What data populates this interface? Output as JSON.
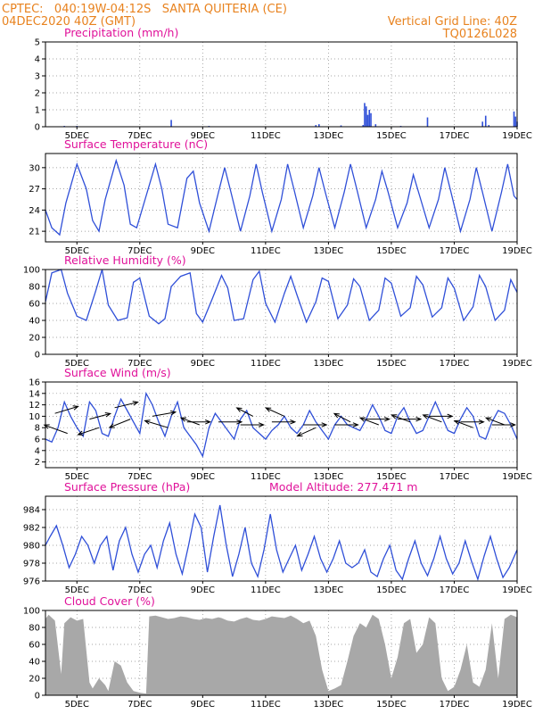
{
  "header": {
    "left_line1": "CPTEC:   040:19W-04:12S   SANTA QUITERIA (CE)",
    "left_line2": "04DEC2020 40Z (GMT)",
    "right_line1": "Vertical Grid Line: 40Z",
    "right_line2": "TQ0126L028"
  },
  "colors": {
    "series": "#2f4fd8",
    "cloud": "#a8a8a8",
    "header": "#e8821e",
    "title": "#e0129a",
    "arrow": "#000000"
  },
  "x_axis": {
    "ticks": [
      "5DEC",
      "7DEC",
      "9DEC",
      "11DEC",
      "13DEC",
      "15DEC",
      "17DEC",
      "19DEC"
    ],
    "range_days": [
      4.0,
      19.0
    ]
  },
  "chart_data": [
    {
      "id": "precip",
      "type": "bar",
      "title": "Precipitation (mm/h)",
      "ylim": [
        0,
        5
      ],
      "yticks": [
        0,
        1,
        2,
        3,
        4,
        5
      ],
      "x": [
        4.6,
        5.0,
        8.0,
        9.2,
        12.6,
        12.7,
        13.4,
        14.1,
        14.15,
        14.2,
        14.25,
        14.3,
        14.35,
        14.5,
        15.3,
        16.15,
        17.9,
        18.0,
        18.1,
        18.9,
        18.95,
        19.0
      ],
      "values": [
        0.05,
        0.05,
        0.4,
        0.05,
        0.1,
        0.15,
        0.08,
        0.1,
        1.4,
        1.2,
        0.7,
        1.0,
        0.8,
        0.15,
        0.05,
        0.55,
        0.3,
        0.65,
        0.1,
        0.9,
        0.6,
        0.3
      ]
    },
    {
      "id": "temp",
      "type": "line",
      "title": "Surface Temperature (nC)",
      "ylim": [
        19.5,
        32
      ],
      "yticks": [
        21,
        24,
        27,
        30
      ],
      "x": [
        4.0,
        4.2,
        4.45,
        4.65,
        5.0,
        5.3,
        5.5,
        5.7,
        5.9,
        6.25,
        6.5,
        6.7,
        6.9,
        7.2,
        7.5,
        7.7,
        7.9,
        8.2,
        8.5,
        8.7,
        8.9,
        9.2,
        9.5,
        9.7,
        9.9,
        10.2,
        10.5,
        10.7,
        10.9,
        11.2,
        11.5,
        11.7,
        11.9,
        12.2,
        12.5,
        12.7,
        12.9,
        13.2,
        13.5,
        13.7,
        13.9,
        14.2,
        14.5,
        14.7,
        14.9,
        15.2,
        15.5,
        15.7,
        15.9,
        16.2,
        16.5,
        16.7,
        16.9,
        17.2,
        17.5,
        17.7,
        17.9,
        18.2,
        18.5,
        18.7,
        18.9,
        19.0
      ],
      "values": [
        24.0,
        21.5,
        20.5,
        25.0,
        30.5,
        27.0,
        22.5,
        21.0,
        25.5,
        31.0,
        27.5,
        22.0,
        21.5,
        26.0,
        30.5,
        27.0,
        22.0,
        21.5,
        28.5,
        29.5,
        25.0,
        21.0,
        26.5,
        30.0,
        26.5,
        21.0,
        26.0,
        30.5,
        26.5,
        21.0,
        25.5,
        30.5,
        27.0,
        21.5,
        26.0,
        30.0,
        26.5,
        21.5,
        26.5,
        30.5,
        27.0,
        21.5,
        25.5,
        29.5,
        26.5,
        21.5,
        25.0,
        29.0,
        26.0,
        21.5,
        25.5,
        30.0,
        26.5,
        21.0,
        25.5,
        30.0,
        26.5,
        21.0,
        26.5,
        30.5,
        26.0,
        25.5
      ]
    },
    {
      "id": "rh",
      "type": "line",
      "title": "Relative Humidity (%)",
      "ylim": [
        0,
        100
      ],
      "yticks": [
        0,
        20,
        40,
        60,
        80,
        100
      ],
      "x": [
        4.0,
        4.2,
        4.5,
        4.7,
        5.0,
        5.3,
        5.6,
        5.8,
        6.0,
        6.3,
        6.6,
        6.8,
        7.0,
        7.3,
        7.6,
        7.8,
        8.0,
        8.3,
        8.6,
        8.8,
        9.0,
        9.3,
        9.6,
        9.8,
        10.0,
        10.3,
        10.6,
        10.8,
        11.0,
        11.3,
        11.6,
        11.8,
        12.0,
        12.3,
        12.6,
        12.8,
        13.0,
        13.3,
        13.6,
        13.8,
        14.0,
        14.3,
        14.6,
        14.8,
        15.0,
        15.3,
        15.6,
        15.8,
        16.0,
        16.3,
        16.6,
        16.8,
        17.0,
        17.3,
        17.6,
        17.8,
        18.0,
        18.3,
        18.6,
        18.8,
        19.0
      ],
      "values": [
        62,
        96,
        100,
        72,
        45,
        40,
        75,
        100,
        58,
        40,
        43,
        85,
        90,
        45,
        36,
        42,
        80,
        92,
        96,
        48,
        38,
        65,
        93,
        78,
        40,
        42,
        88,
        98,
        60,
        38,
        72,
        92,
        70,
        38,
        62,
        90,
        86,
        42,
        58,
        89,
        80,
        40,
        52,
        90,
        84,
        45,
        55,
        92,
        82,
        44,
        55,
        90,
        78,
        40,
        56,
        93,
        80,
        40,
        52,
        88,
        73
      ]
    },
    {
      "id": "wind",
      "type": "line",
      "title": "Surface Wind (m/s)",
      "ylim": [
        1,
        16
      ],
      "yticks": [
        2,
        4,
        6,
        8,
        10,
        12,
        14,
        16
      ],
      "x": [
        4.0,
        4.2,
        4.4,
        4.6,
        4.8,
        5.0,
        5.2,
        5.4,
        5.6,
        5.8,
        6.0,
        6.2,
        6.4,
        6.6,
        6.8,
        7.0,
        7.2,
        7.4,
        7.6,
        7.8,
        8.0,
        8.2,
        8.4,
        8.6,
        8.8,
        9.0,
        9.2,
        9.4,
        9.6,
        9.8,
        10.0,
        10.2,
        10.4,
        10.6,
        10.8,
        11.0,
        11.2,
        11.4,
        11.6,
        11.8,
        12.0,
        12.2,
        12.4,
        12.6,
        12.8,
        13.0,
        13.2,
        13.4,
        13.6,
        13.8,
        14.0,
        14.2,
        14.4,
        14.6,
        14.8,
        15.0,
        15.2,
        15.4,
        15.6,
        15.8,
        16.0,
        16.2,
        16.4,
        16.6,
        16.8,
        17.0,
        17.2,
        17.4,
        17.6,
        17.8,
        18.0,
        18.2,
        18.4,
        18.6,
        18.8,
        19.0
      ],
      "values": [
        6,
        5.5,
        8,
        12.5,
        10,
        8,
        6.5,
        12.5,
        11,
        7,
        6.5,
        10,
        13,
        11,
        9,
        7,
        14,
        12,
        9,
        6.5,
        10,
        12.5,
        8,
        6.5,
        5,
        3,
        8,
        10.5,
        9,
        7.5,
        6,
        9.5,
        11,
        8,
        7,
        6,
        7.5,
        8.5,
        10,
        8,
        7,
        8.5,
        11,
        9,
        7.5,
        6,
        8.5,
        10,
        8.5,
        8,
        7.5,
        9.5,
        12,
        10,
        7.5,
        7,
        10,
        11.5,
        9,
        7,
        7.5,
        10,
        12.5,
        10,
        7.5,
        7,
        9.5,
        11.5,
        10,
        6.5,
        6,
        9,
        11,
        10.5,
        8.5,
        6
      ]
    },
    {
      "id": "pressure",
      "type": "line",
      "title": "Surface Pressure (hPa)",
      "annotation": "Model Altitude: 277.471 m",
      "ylim": [
        976,
        985.5
      ],
      "yticks": [
        976,
        978,
        980,
        982,
        984
      ],
      "x": [
        4.0,
        4.15,
        4.35,
        4.55,
        4.75,
        4.95,
        5.15,
        5.35,
        5.55,
        5.75,
        5.95,
        6.15,
        6.35,
        6.55,
        6.75,
        6.95,
        7.15,
        7.35,
        7.55,
        7.75,
        7.95,
        8.15,
        8.35,
        8.55,
        8.75,
        8.95,
        9.15,
        9.35,
        9.55,
        9.75,
        9.95,
        10.15,
        10.35,
        10.55,
        10.75,
        10.95,
        11.15,
        11.35,
        11.55,
        11.75,
        11.95,
        12.15,
        12.35,
        12.55,
        12.75,
        12.95,
        13.15,
        13.35,
        13.55,
        13.75,
        13.95,
        14.15,
        14.35,
        14.55,
        14.75,
        14.95,
        15.15,
        15.35,
        15.55,
        15.75,
        15.95,
        16.15,
        16.35,
        16.55,
        16.75,
        16.95,
        17.15,
        17.35,
        17.55,
        17.75,
        17.95,
        18.15,
        18.35,
        18.55,
        18.75,
        19.0
      ],
      "values": [
        980,
        981,
        982.2,
        980,
        977.5,
        979,
        981,
        980,
        978,
        980,
        981,
        977.2,
        980.5,
        982,
        979,
        977,
        979,
        980,
        977.5,
        980.5,
        982.5,
        979,
        976.8,
        980,
        983.5,
        982,
        977,
        981,
        984.5,
        980,
        976.5,
        979,
        982,
        978,
        976.5,
        979.5,
        983.5,
        979.5,
        977,
        978.5,
        980,
        977.2,
        979,
        981,
        978.5,
        977,
        978.5,
        980.5,
        978,
        977.5,
        978,
        979.5,
        977,
        976.5,
        978.5,
        980,
        977.2,
        976.2,
        978.5,
        980.5,
        978,
        976.6,
        978.5,
        981,
        978.5,
        976.8,
        978,
        980.5,
        978.2,
        976.2,
        978.8,
        981,
        978.5,
        976.4,
        977.5,
        979.5
      ]
    },
    {
      "id": "cloud",
      "type": "area",
      "title": "Cloud Cover (%)",
      "ylim": [
        0,
        100
      ],
      "yticks": [
        0,
        20,
        40,
        60,
        80,
        100
      ],
      "x": [
        4.0,
        4.1,
        4.3,
        4.5,
        4.6,
        4.8,
        5.0,
        5.2,
        5.4,
        5.5,
        5.7,
        5.9,
        6.0,
        6.2,
        6.4,
        6.6,
        6.8,
        7.0,
        7.2,
        7.3,
        7.5,
        7.7,
        7.9,
        8.1,
        8.3,
        8.5,
        8.7,
        8.9,
        9.1,
        9.3,
        9.5,
        9.6,
        9.8,
        10.0,
        10.2,
        10.4,
        10.6,
        10.8,
        11.0,
        11.2,
        11.4,
        11.6,
        11.8,
        12.0,
        12.2,
        12.4,
        12.6,
        12.8,
        13.0,
        13.2,
        13.4,
        13.6,
        13.8,
        14.0,
        14.2,
        14.4,
        14.6,
        14.8,
        15.0,
        15.2,
        15.4,
        15.6,
        15.8,
        16.0,
        16.2,
        16.4,
        16.6,
        16.8,
        17.0,
        17.2,
        17.4,
        17.6,
        17.8,
        18.0,
        18.2,
        18.4,
        18.6,
        18.8,
        19.0
      ],
      "values": [
        90,
        95,
        88,
        25,
        85,
        92,
        88,
        90,
        15,
        8,
        20,
        12,
        5,
        40,
        35,
        15,
        5,
        3,
        2,
        93,
        94,
        92,
        90,
        91,
        93,
        92,
        90,
        89,
        91,
        90,
        92,
        91,
        88,
        87,
        90,
        92,
        89,
        88,
        90,
        93,
        92,
        91,
        94,
        90,
        85,
        88,
        70,
        30,
        5,
        8,
        12,
        40,
        70,
        85,
        80,
        95,
        90,
        60,
        20,
        45,
        85,
        90,
        50,
        60,
        92,
        85,
        20,
        5,
        10,
        30,
        60,
        15,
        10,
        30,
        85,
        20,
        90,
        95,
        92
      ]
    }
  ],
  "wind_vectors": [
    {
      "day": 4.3,
      "speed": 10.5,
      "u": 1.0,
      "v": -0.5
    },
    {
      "day": 4.7,
      "speed": 7.0,
      "u": -1.0,
      "v": -0.6
    },
    {
      "day": 5.4,
      "speed": 9.5,
      "u": 0.9,
      "v": -0.4
    },
    {
      "day": 5.7,
      "speed": 8.0,
      "u": -0.9,
      "v": 0.5
    },
    {
      "day": 6.2,
      "speed": 11.5,
      "u": 1.0,
      "v": -0.4
    },
    {
      "day": 6.7,
      "speed": 9.5,
      "u": -0.9,
      "v": 0.6
    },
    {
      "day": 7.4,
      "speed": 10.0,
      "u": 1.0,
      "v": -0.3
    },
    {
      "day": 7.9,
      "speed": 8.0,
      "u": -1.0,
      "v": -0.5
    },
    {
      "day": 8.5,
      "speed": 9.0,
      "u": 1.0,
      "v": 0.0
    },
    {
      "day": 8.9,
      "speed": 8.5,
      "u": -0.8,
      "v": -0.5
    },
    {
      "day": 9.5,
      "speed": 9.0,
      "u": 1.0,
      "v": 0.0
    },
    {
      "day": 10.2,
      "speed": 8.5,
      "u": 1.0,
      "v": 0.0
    },
    {
      "day": 10.6,
      "speed": 10.0,
      "u": -0.7,
      "v": -0.6
    },
    {
      "day": 11.2,
      "speed": 9.0,
      "u": 1.0,
      "v": 0.0
    },
    {
      "day": 11.6,
      "speed": 10.0,
      "u": -0.8,
      "v": -0.6
    },
    {
      "day": 12.2,
      "speed": 8.5,
      "u": 1.0,
      "v": 0.0
    },
    {
      "day": 12.6,
      "speed": 8.0,
      "u": -0.8,
      "v": 0.6
    },
    {
      "day": 13.2,
      "speed": 8.5,
      "u": 1.0,
      "v": 0.0
    },
    {
      "day": 13.7,
      "speed": 9.0,
      "u": -0.7,
      "v": -0.6
    },
    {
      "day": 14.2,
      "speed": 9.5,
      "u": 1.0,
      "v": 0.0
    },
    {
      "day": 14.6,
      "speed": 8.5,
      "u": -0.8,
      "v": -0.5
    },
    {
      "day": 15.2,
      "speed": 9.5,
      "u": 1.0,
      "v": 0.0
    },
    {
      "day": 15.6,
      "speed": 9.0,
      "u": -0.8,
      "v": -0.5
    },
    {
      "day": 16.2,
      "speed": 10.0,
      "u": 1.0,
      "v": 0.0
    },
    {
      "day": 16.6,
      "speed": 9.0,
      "u": -0.8,
      "v": -0.5
    },
    {
      "day": 17.2,
      "speed": 9.0,
      "u": 1.0,
      "v": 0.0
    },
    {
      "day": 17.6,
      "speed": 8.0,
      "u": -0.8,
      "v": -0.5
    },
    {
      "day": 18.2,
      "speed": 8.5,
      "u": 1.0,
      "v": 0.0
    },
    {
      "day": 18.6,
      "speed": 8.5,
      "u": -0.8,
      "v": -0.5
    }
  ]
}
